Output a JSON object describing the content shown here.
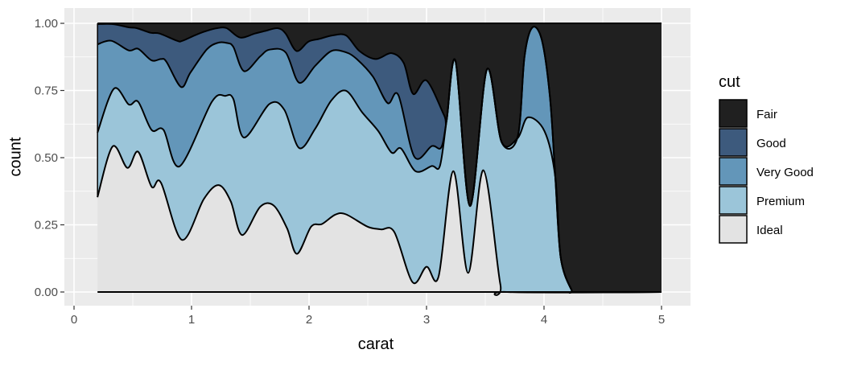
{
  "chart_data": {
    "type": "area",
    "stacking": "fill",
    "xlabel": "carat",
    "ylabel": "count",
    "xlim": [
      0,
      5
    ],
    "ylim": [
      0,
      1
    ],
    "x_ticks": [
      "0",
      "1",
      "2",
      "3",
      "4",
      "5"
    ],
    "y_ticks": [
      "0.00",
      "0.25",
      "0.50",
      "0.75",
      "1.00"
    ],
    "grid": true,
    "legend": {
      "title": "cut",
      "position": "right"
    },
    "colors": {
      "Fair": "#202020",
      "Good": "#3d5a7d",
      "Very Good": "#6396b9",
      "Premium": "#9bc5d9",
      "Ideal": "#e3e3e3"
    },
    "series": [
      {
        "name": "Fair",
        "upper": [
          [
            0.2,
            1
          ],
          [
            5,
            1
          ]
        ]
      },
      {
        "name": "Good",
        "upper": [
          [
            0.199,
            0.997
          ],
          [
            0.329,
            0.997
          ],
          [
            0.466,
            0.985
          ],
          [
            0.534,
            0.982
          ],
          [
            0.649,
            0.965
          ],
          [
            0.728,
            0.962
          ],
          [
            0.877,
            0.935
          ],
          [
            0.923,
            0.935
          ],
          [
            1.036,
            0.957
          ],
          [
            1.128,
            0.972
          ],
          [
            1.219,
            0.982
          ],
          [
            1.299,
            0.982
          ],
          [
            1.413,
            0.947
          ],
          [
            1.539,
            0.962
          ],
          [
            1.63,
            0.972
          ],
          [
            1.733,
            0.982
          ],
          [
            1.801,
            0.962
          ],
          [
            1.893,
            0.897
          ],
          [
            1.995,
            0.932
          ],
          [
            2.087,
            0.942
          ],
          [
            2.201,
            0.955
          ],
          [
            2.315,
            0.955
          ],
          [
            2.429,
            0.897
          ],
          [
            2.566,
            0.867
          ],
          [
            2.703,
            0.889
          ],
          [
            2.806,
            0.852
          ],
          [
            2.886,
            0.737
          ],
          [
            3.0,
            0.787
          ],
          [
            3.149,
            0.658
          ],
          [
            3.171,
            0.639
          ],
          [
            3.247,
            0.859
          ],
          [
            3.37,
            0.32
          ],
          [
            3.514,
            0.828
          ],
          [
            3.639,
            0.558
          ],
          [
            3.776,
            0.578
          ],
          [
            3.834,
            0.877
          ],
          [
            3.902,
            0.985
          ],
          [
            3.982,
            0.937
          ],
          [
            4.05,
            0.728
          ],
          [
            4.096,
            0.428
          ],
          [
            4.142,
            0.129
          ],
          [
            4.233,
            0.009
          ],
          [
            4.279,
            0
          ],
          [
            5,
            0
          ]
        ]
      },
      {
        "name": "Very Good",
        "upper": [
          [
            0.199,
            0.922
          ],
          [
            0.317,
            0.935
          ],
          [
            0.466,
            0.899
          ],
          [
            0.546,
            0.905
          ],
          [
            0.66,
            0.862
          ],
          [
            0.74,
            0.867
          ],
          [
            0.786,
            0.857
          ],
          [
            0.911,
            0.763
          ],
          [
            0.991,
            0.817
          ],
          [
            1.128,
            0.902
          ],
          [
            1.219,
            0.927
          ],
          [
            1.299,
            0.927
          ],
          [
            1.356,
            0.912
          ],
          [
            1.447,
            0.822
          ],
          [
            1.584,
            0.877
          ],
          [
            1.664,
            0.902
          ],
          [
            1.801,
            0.892
          ],
          [
            1.916,
            0.779
          ],
          [
            2.053,
            0.842
          ],
          [
            2.19,
            0.897
          ],
          [
            2.315,
            0.892
          ],
          [
            2.406,
            0.867
          ],
          [
            2.543,
            0.802
          ],
          [
            2.669,
            0.703
          ],
          [
            2.76,
            0.733
          ],
          [
            2.897,
            0.503
          ],
          [
            3.045,
            0.543
          ],
          [
            3.125,
            0.538
          ],
          [
            3.171,
            0.639
          ],
          [
            3.247,
            0.859
          ],
          [
            3.37,
            0.32
          ],
          [
            3.514,
            0.828
          ],
          [
            3.639,
            0.558
          ],
          [
            3.776,
            0.578
          ],
          [
            3.834,
            0.877
          ],
          [
            3.902,
            0.985
          ],
          [
            3.982,
            0.937
          ],
          [
            4.05,
            0.728
          ],
          [
            4.096,
            0.428
          ],
          [
            4.142,
            0.129
          ],
          [
            4.233,
            0.009
          ],
          [
            4.279,
            0
          ],
          [
            5,
            0
          ]
        ]
      },
      {
        "name": "Premium",
        "upper": [
          [
            0.199,
            0.593
          ],
          [
            0.34,
            0.757
          ],
          [
            0.466,
            0.698
          ],
          [
            0.546,
            0.708
          ],
          [
            0.66,
            0.603
          ],
          [
            0.762,
            0.603
          ],
          [
            0.899,
            0.468
          ],
          [
            1.173,
            0.708
          ],
          [
            1.288,
            0.73
          ],
          [
            1.356,
            0.718
          ],
          [
            1.447,
            0.575
          ],
          [
            1.664,
            0.7
          ],
          [
            1.79,
            0.678
          ],
          [
            1.916,
            0.536
          ],
          [
            2.053,
            0.608
          ],
          [
            2.19,
            0.713
          ],
          [
            2.315,
            0.749
          ],
          [
            2.452,
            0.669
          ],
          [
            2.589,
            0.599
          ],
          [
            2.703,
            0.519
          ],
          [
            2.783,
            0.534
          ],
          [
            2.908,
            0.449
          ],
          [
            3.045,
            0.469
          ],
          [
            3.114,
            0.469
          ],
          [
            3.171,
            0.639
          ],
          [
            3.247,
            0.859
          ],
          [
            3.37,
            0.32
          ],
          [
            3.514,
            0.828
          ],
          [
            3.639,
            0.558
          ],
          [
            3.776,
            0.573
          ],
          [
            3.863,
            0.65
          ],
          [
            4.005,
            0.598
          ],
          [
            4.096,
            0.428
          ],
          [
            4.142,
            0.129
          ],
          [
            4.233,
            0.009
          ],
          [
            4.279,
            0
          ],
          [
            5,
            0
          ]
        ]
      },
      {
        "name": "Ideal",
        "upper": [
          [
            0.199,
            0.353
          ],
          [
            0.329,
            0.542
          ],
          [
            0.454,
            0.462
          ],
          [
            0.546,
            0.522
          ],
          [
            0.66,
            0.392
          ],
          [
            0.74,
            0.407
          ],
          [
            0.918,
            0.194
          ],
          [
            1.105,
            0.346
          ],
          [
            1.231,
            0.398
          ],
          [
            1.334,
            0.337
          ],
          [
            1.43,
            0.212
          ],
          [
            1.584,
            0.317
          ],
          [
            1.699,
            0.322
          ],
          [
            1.813,
            0.237
          ],
          [
            1.897,
            0.142
          ],
          [
            2.018,
            0.243
          ],
          [
            2.11,
            0.253
          ],
          [
            2.224,
            0.288
          ],
          [
            2.315,
            0.289
          ],
          [
            2.498,
            0.243
          ],
          [
            2.612,
            0.233
          ],
          [
            2.726,
            0.223
          ],
          [
            2.882,
            0.036
          ],
          [
            3.0,
            0.094
          ],
          [
            3.103,
            0.058
          ],
          [
            3.228,
            0.45
          ],
          [
            3.354,
            0.071
          ],
          [
            3.484,
            0.453
          ],
          [
            3.628,
            0.029
          ],
          [
            3.685,
            0
          ],
          [
            5,
            0
          ]
        ]
      }
    ]
  }
}
